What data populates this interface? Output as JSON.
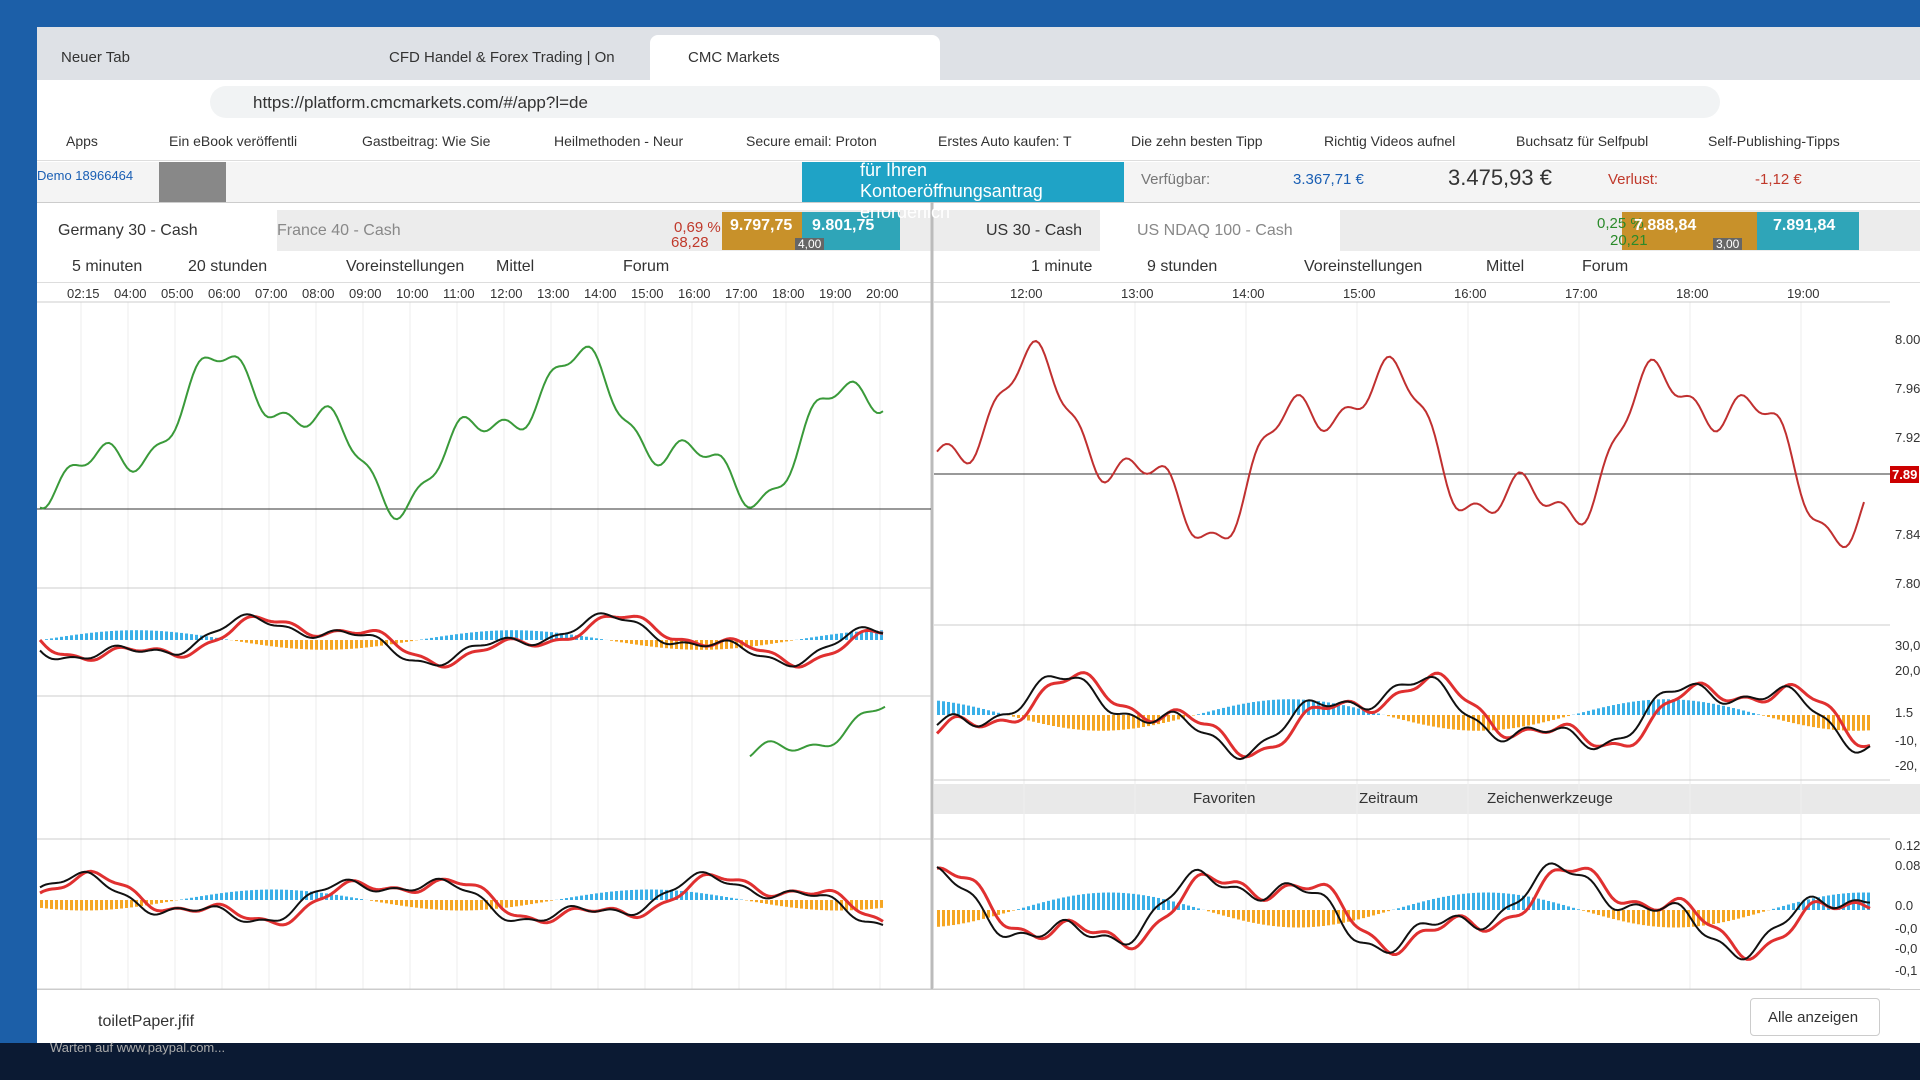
{
  "browser": {
    "tabs": [
      "Neuer Tab",
      "CFD Handel & Forex Trading | On",
      "CMC Markets"
    ],
    "url": "https://platform.cmcmarkets.com/#/app?l=de",
    "bookmarks": [
      "Apps",
      "Ein eBook veröffentli",
      "Gastbeitrag: Wie Sie",
      "Heilmethoden - Neur",
      "Secure email: Proton",
      "Erstes Auto kaufen: T",
      "Die zehn besten Tipp",
      "Richtig Videos aufnel",
      "Buchsatz für Selfpubl",
      "Self-Publishing-Tipps"
    ]
  },
  "app": {
    "account": "Demo 18966464",
    "banner": [
      "für Ihren",
      "Kontoeröffnungsantrag",
      "erforderlich"
    ],
    "available_label": "Verfügbar:",
    "available": "3.367,71 €",
    "equity": "3.475,93 €",
    "loss_label": "Verlust:",
    "loss": "-1,12 €"
  },
  "panels": [
    {
      "tabs": [
        "Germany 30 - Cash",
        "France 40 - Cash"
      ],
      "change_pct": "0,69 %",
      "change_abs": "68,28",
      "sell": "9.797,75",
      "buy": "9.801,75",
      "spread": "4,00",
      "toolbar": [
        "5 minuten",
        "20 stunden",
        "Voreinstellungen",
        "Mittel",
        "Forum"
      ],
      "times": [
        "02:15",
        "04:00",
        "05:00",
        "06:00",
        "07:00",
        "08:00",
        "09:00",
        "10:00",
        "11:00",
        "12:00",
        "13:00",
        "14:00",
        "15:00",
        "16:00",
        "17:00",
        "18:00",
        "19:00",
        "20:00"
      ]
    },
    {
      "tabs": [
        "US 30 - Cash",
        "US NDAQ 100 - Cash"
      ],
      "change_pct": "0,25 %",
      "change_abs": "20,21",
      "sell": "7.888,84",
      "buy": "7.891,84",
      "spread": "3,00",
      "toolbar": [
        "1 minute",
        "9 stunden",
        "Voreinstellungen",
        "Mittel",
        "Forum"
      ],
      "times": [
        "12:00",
        "13:00",
        "14:00",
        "15:00",
        "16:00",
        "17:00",
        "18:00",
        "19:00"
      ],
      "price_axis": [
        "8.00",
        "7.96",
        "7.92",
        "7.84",
        "7.80"
      ],
      "current_price": "7.89",
      "macd_axis": [
        "30,0",
        "20,0",
        "1.5",
        "-10,",
        "-20,"
      ],
      "lower_toolbar": [
        "Favoriten",
        "Zeitraum",
        "Zeichenwerkzeuge"
      ],
      "lower_axis": [
        "0.12",
        "0.08",
        "0.0",
        "-0,0",
        "-0,0",
        "-0,1"
      ]
    }
  ],
  "downloads": {
    "file": "toiletPaper.jfif",
    "show_all": "Alle anzeigen"
  },
  "status": "Warten auf www.paypal.com..."
}
